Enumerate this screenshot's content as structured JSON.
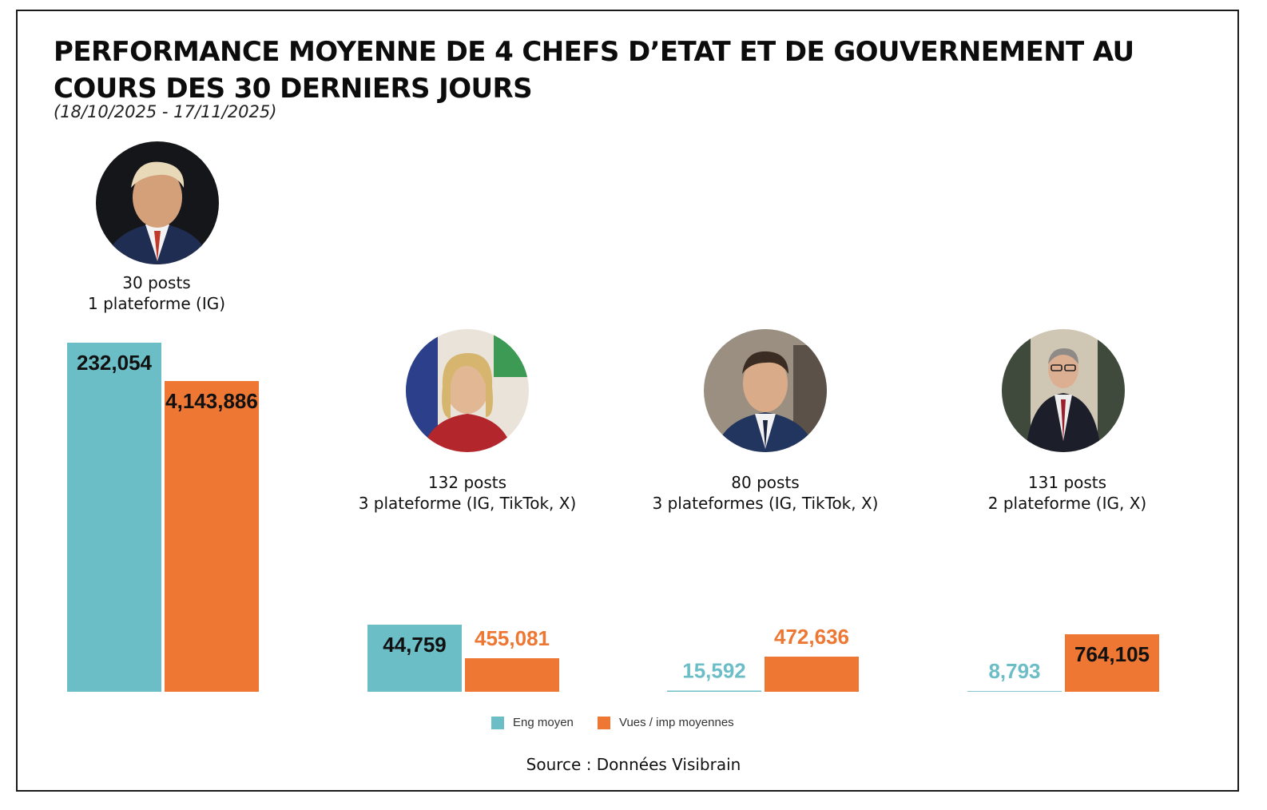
{
  "title": "PERFORMANCE MOYENNE DE 4 CHEFS D’ETAT ET DE GOUVERNEMENT AU COURS DES 30 DERNIERS JOURS",
  "subtitle": "(18/10/2025 - 17/11/2025)",
  "source": "Source : Données Visibrain",
  "colors": {
    "eng": "#6bbdc6",
    "vues": "#ed7733",
    "text": "#111111"
  },
  "leaders": [
    {
      "posts": "30 posts",
      "platforms": "1 plateforme (IG)"
    },
    {
      "posts": "132 posts",
      "platforms": "3 plateforme (IG, TikTok, X)"
    },
    {
      "posts": "80 posts",
      "platforms": "3 plateformes (IG, TikTok, X)"
    },
    {
      "posts": "131 posts",
      "platforms": "2 plateforme (IG, X)"
    }
  ],
  "chart_data": {
    "type": "bar",
    "title": "PERFORMANCE MOYENNE DE 4 CHEFS D’ETAT ET DE GOUVERNEMENT AU COURS DES 30 DERNIERS JOURS",
    "categories": [
      "30 posts",
      "132 posts",
      "80 posts",
      "131 posts"
    ],
    "series": [
      {
        "name": "Eng moyen",
        "values": [
          232054,
          44759,
          15592,
          8793
        ],
        "labels": [
          "232,054",
          "44,759",
          "15,592",
          "8,793"
        ]
      },
      {
        "name": "Vues / imp moyennes",
        "values": [
          4143886,
          455081,
          472636,
          764105
        ],
        "labels": [
          "4,143,886",
          "455,081",
          "472,636",
          "764,105"
        ]
      }
    ],
    "legend_position": "bottom-center",
    "grid": false
  }
}
